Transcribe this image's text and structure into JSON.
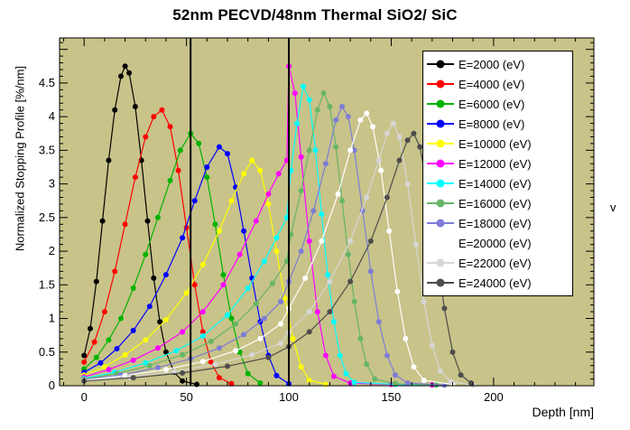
{
  "plot": {
    "bg_color": "#c8c389",
    "frame_color": "#000000",
    "boundary_line_color": "#000000"
  },
  "right_margin_glyph": "v",
  "chart_data": {
    "type": "line",
    "title": "52nm PECVD/48nm Thermal SiO2/ SiC",
    "xlabel": "Depth [nm]",
    "ylabel": "Normalized Stopping Profile [%/nm]",
    "xlim": [
      -12,
      249
    ],
    "ylim": [
      0,
      5.17
    ],
    "xticks": [
      0,
      50,
      100,
      150,
      200
    ],
    "yticks": [
      0,
      0.5,
      1,
      1.5,
      2,
      2.5,
      3,
      3.5,
      4,
      4.5
    ],
    "x_minor_step": 10,
    "y_minor_step": 0.1,
    "grid": false,
    "legend_position": "top-right",
    "boundary_lines_x": [
      52,
      100
    ],
    "marker_style": "filled-circle",
    "series": [
      {
        "name": "E=2000 (eV)",
        "color": "#000000",
        "points": [
          [
            0,
            0.45
          ],
          [
            3,
            0.85
          ],
          [
            6,
            1.55
          ],
          [
            9,
            2.45
          ],
          [
            12,
            3.35
          ],
          [
            15,
            4.1
          ],
          [
            18,
            4.6
          ],
          [
            20,
            4.75
          ],
          [
            22,
            4.65
          ],
          [
            25,
            4.15
          ],
          [
            28,
            3.35
          ],
          [
            31,
            2.45
          ],
          [
            34,
            1.6
          ],
          [
            37,
            0.95
          ],
          [
            40,
            0.5
          ],
          [
            44,
            0.2
          ],
          [
            48,
            0.07
          ],
          [
            55,
            0.02
          ]
        ]
      },
      {
        "name": "E=4000 (eV)",
        "color": "#ff0000",
        "points": [
          [
            0,
            0.35
          ],
          [
            5,
            0.65
          ],
          [
            10,
            1.1
          ],
          [
            15,
            1.7
          ],
          [
            20,
            2.4
          ],
          [
            25,
            3.1
          ],
          [
            30,
            3.7
          ],
          [
            34,
            4.0
          ],
          [
            38,
            4.1
          ],
          [
            42,
            3.85
          ],
          [
            46,
            3.2
          ],
          [
            50,
            2.35
          ],
          [
            54,
            1.5
          ],
          [
            58,
            0.8
          ],
          [
            62,
            0.35
          ],
          [
            66,
            0.12
          ],
          [
            72,
            0.03
          ]
        ]
      },
      {
        "name": "E=6000 (eV)",
        "color": "#00b400",
        "points": [
          [
            0,
            0.25
          ],
          [
            6,
            0.42
          ],
          [
            12,
            0.68
          ],
          [
            18,
            1.0
          ],
          [
            24,
            1.45
          ],
          [
            30,
            1.95
          ],
          [
            36,
            2.5
          ],
          [
            42,
            3.05
          ],
          [
            47,
            3.5
          ],
          [
            52,
            3.75
          ],
          [
            56,
            3.6
          ],
          [
            60,
            3.1
          ],
          [
            64,
            2.4
          ],
          [
            68,
            1.65
          ],
          [
            72,
            1.0
          ],
          [
            76,
            0.5
          ],
          [
            80,
            0.18
          ],
          [
            86,
            0.04
          ]
        ]
      },
      {
        "name": "E=8000 (eV)",
        "color": "#0000ff",
        "points": [
          [
            0,
            0.2
          ],
          [
            8,
            0.34
          ],
          [
            16,
            0.55
          ],
          [
            24,
            0.82
          ],
          [
            32,
            1.18
          ],
          [
            40,
            1.65
          ],
          [
            48,
            2.2
          ],
          [
            54,
            2.75
          ],
          [
            60,
            3.25
          ],
          [
            66,
            3.55
          ],
          [
            70,
            3.45
          ],
          [
            74,
            2.95
          ],
          [
            78,
            2.3
          ],
          [
            82,
            1.6
          ],
          [
            86,
            0.95
          ],
          [
            90,
            0.45
          ],
          [
            94,
            0.15
          ],
          [
            100,
            0.03
          ]
        ]
      },
      {
        "name": "E=10000 (eV)",
        "color": "#ffff00",
        "points": [
          [
            0,
            0.16
          ],
          [
            10,
            0.28
          ],
          [
            20,
            0.46
          ],
          [
            30,
            0.68
          ],
          [
            40,
            0.98
          ],
          [
            50,
            1.38
          ],
          [
            58,
            1.8
          ],
          [
            66,
            2.3
          ],
          [
            72,
            2.75
          ],
          [
            78,
            3.15
          ],
          [
            82,
            3.35
          ],
          [
            86,
            3.2
          ],
          [
            90,
            2.7
          ],
          [
            94,
            2.0
          ],
          [
            98,
            1.3
          ],
          [
            102,
            0.7
          ],
          [
            106,
            0.28
          ],
          [
            110,
            0.08
          ],
          [
            118,
            0.02
          ]
        ]
      },
      {
        "name": "E=12000 (eV)",
        "color": "#ff00ff",
        "points": [
          [
            0,
            0.13
          ],
          [
            12,
            0.24
          ],
          [
            24,
            0.38
          ],
          [
            36,
            0.56
          ],
          [
            48,
            0.8
          ],
          [
            58,
            1.1
          ],
          [
            68,
            1.5
          ],
          [
            76,
            1.95
          ],
          [
            84,
            2.45
          ],
          [
            90,
            2.85
          ],
          [
            95,
            3.15
          ],
          [
            99,
            3.35
          ],
          [
            100,
            4.75
          ],
          [
            103,
            4.35
          ],
          [
            106,
            3.4
          ],
          [
            110,
            2.15
          ],
          [
            114,
            1.1
          ],
          [
            118,
            0.45
          ],
          [
            122,
            0.14
          ],
          [
            130,
            0.04
          ],
          [
            150,
            0.02
          ],
          [
            170,
            0.01
          ]
        ]
      },
      {
        "name": "E=14000 (eV)",
        "color": "#00ffff",
        "points": [
          [
            0,
            0.11
          ],
          [
            15,
            0.2
          ],
          [
            30,
            0.34
          ],
          [
            45,
            0.52
          ],
          [
            58,
            0.74
          ],
          [
            70,
            1.05
          ],
          [
            80,
            1.45
          ],
          [
            88,
            1.85
          ],
          [
            94,
            2.2
          ],
          [
            99,
            2.5
          ],
          [
            101,
            3.2
          ],
          [
            104,
            3.9
          ],
          [
            107,
            4.45
          ],
          [
            110,
            4.25
          ],
          [
            113,
            3.5
          ],
          [
            116,
            2.55
          ],
          [
            119,
            1.65
          ],
          [
            122,
            0.95
          ],
          [
            125,
            0.45
          ],
          [
            128,
            0.18
          ],
          [
            132,
            0.05
          ],
          [
            152,
            0.02
          ],
          [
            172,
            0.01
          ]
        ]
      },
      {
        "name": "E=16000 (eV)",
        "color": "#66b566",
        "points": [
          [
            0,
            0.1
          ],
          [
            16,
            0.18
          ],
          [
            32,
            0.3
          ],
          [
            48,
            0.46
          ],
          [
            62,
            0.66
          ],
          [
            74,
            0.92
          ],
          [
            84,
            1.22
          ],
          [
            92,
            1.52
          ],
          [
            99,
            1.85
          ],
          [
            101,
            2.25
          ],
          [
            106,
            2.9
          ],
          [
            110,
            3.5
          ],
          [
            114,
            4.1
          ],
          [
            117,
            4.35
          ],
          [
            120,
            4.15
          ],
          [
            123,
            3.55
          ],
          [
            126,
            2.75
          ],
          [
            129,
            1.95
          ],
          [
            132,
            1.25
          ],
          [
            135,
            0.7
          ],
          [
            138,
            0.32
          ],
          [
            142,
            0.1
          ],
          [
            152,
            0.03
          ],
          [
            172,
            0.01
          ]
        ]
      },
      {
        "name": "E=18000 (eV)",
        "color": "#7d7dd6",
        "points": [
          [
            0,
            0.09
          ],
          [
            18,
            0.16
          ],
          [
            36,
            0.27
          ],
          [
            52,
            0.4
          ],
          [
            66,
            0.56
          ],
          [
            78,
            0.76
          ],
          [
            88,
            1.0
          ],
          [
            96,
            1.25
          ],
          [
            100,
            1.55
          ],
          [
            106,
            2.0
          ],
          [
            112,
            2.6
          ],
          [
            118,
            3.3
          ],
          [
            123,
            3.95
          ],
          [
            126,
            4.15
          ],
          [
            129,
            4.0
          ],
          [
            132,
            3.5
          ],
          [
            136,
            2.6
          ],
          [
            140,
            1.7
          ],
          [
            144,
            0.95
          ],
          [
            148,
            0.45
          ],
          [
            152,
            0.16
          ],
          [
            158,
            0.04
          ],
          [
            176,
            0.01
          ]
        ]
      },
      {
        "name": "E=20000 (eV)",
        "color": "#ffffff",
        "points": [
          [
            0,
            0.08
          ],
          [
            20,
            0.15
          ],
          [
            40,
            0.24
          ],
          [
            58,
            0.36
          ],
          [
            74,
            0.52
          ],
          [
            86,
            0.7
          ],
          [
            96,
            0.92
          ],
          [
            100,
            1.15
          ],
          [
            108,
            1.6
          ],
          [
            116,
            2.15
          ],
          [
            124,
            2.85
          ],
          [
            130,
            3.5
          ],
          [
            135,
            3.95
          ],
          [
            138,
            4.05
          ],
          [
            141,
            3.85
          ],
          [
            145,
            3.2
          ],
          [
            149,
            2.3
          ],
          [
            153,
            1.4
          ],
          [
            157,
            0.7
          ],
          [
            161,
            0.28
          ],
          [
            166,
            0.08
          ],
          [
            180,
            0.02
          ]
        ]
      },
      {
        "name": "E=22000 (eV)",
        "color": "#d6d6d6",
        "points": [
          [
            0,
            0.07
          ],
          [
            22,
            0.13
          ],
          [
            44,
            0.21
          ],
          [
            64,
            0.32
          ],
          [
            82,
            0.46
          ],
          [
            96,
            0.63
          ],
          [
            100,
            0.8
          ],
          [
            110,
            1.1
          ],
          [
            120,
            1.55
          ],
          [
            130,
            2.15
          ],
          [
            138,
            2.8
          ],
          [
            144,
            3.35
          ],
          [
            148,
            3.75
          ],
          [
            151,
            3.9
          ],
          [
            154,
            3.7
          ],
          [
            158,
            3.0
          ],
          [
            162,
            2.1
          ],
          [
            166,
            1.25
          ],
          [
            170,
            0.6
          ],
          [
            174,
            0.22
          ],
          [
            179,
            0.06
          ],
          [
            190,
            0.01
          ]
        ]
      },
      {
        "name": "E=24000 (eV)",
        "color": "#4d4d4d",
        "points": [
          [
            0,
            0.07
          ],
          [
            24,
            0.12
          ],
          [
            48,
            0.19
          ],
          [
            70,
            0.29
          ],
          [
            90,
            0.42
          ],
          [
            100,
            0.58
          ],
          [
            110,
            0.8
          ],
          [
            120,
            1.1
          ],
          [
            130,
            1.55
          ],
          [
            140,
            2.15
          ],
          [
            148,
            2.8
          ],
          [
            154,
            3.35
          ],
          [
            158,
            3.65
          ],
          [
            161,
            3.75
          ],
          [
            164,
            3.55
          ],
          [
            168,
            2.9
          ],
          [
            172,
            2.0
          ],
          [
            176,
            1.15
          ],
          [
            180,
            0.5
          ],
          [
            184,
            0.16
          ],
          [
            189,
            0.04
          ]
        ]
      }
    ]
  }
}
